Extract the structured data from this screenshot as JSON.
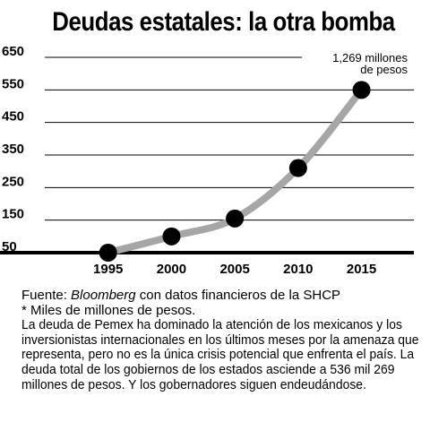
{
  "chart_data": {
    "type": "line",
    "title": "Deudas estatales: la otra bomba",
    "x": [
      1995,
      2000,
      2005,
      2010,
      2015
    ],
    "values": [
      50,
      100,
      155,
      310,
      550
    ],
    "ylim": [
      50,
      650
    ],
    "yticks": [
      50,
      150,
      250,
      350,
      450,
      550,
      650
    ],
    "xlim": [
      1990,
      2018
    ],
    "grid": true,
    "annotation": "1,269 millones\nde pesos",
    "colors": {
      "line": "#a6a6a6",
      "marker": "#000000",
      "grid": "#000000"
    }
  },
  "footer": {
    "source_prefix": "Fuente: ",
    "source_name": "Bloomberg",
    "source_suffix": " con datos financieros de la SHCP",
    "unit_note": "* Miles de millones de pesos.",
    "body": "La deuda de Pemex ha dominado la atención de los mexicanos y los inversionistas internacionales en los últimos meses por la amenaza que representa, pero no es la única crisis potencial que enfrenta el país. La deuda total de los gobiernos de los estados asciende a 536 mil 269 millones de pesos. Y los gobernadores siguen endeudándose."
  }
}
